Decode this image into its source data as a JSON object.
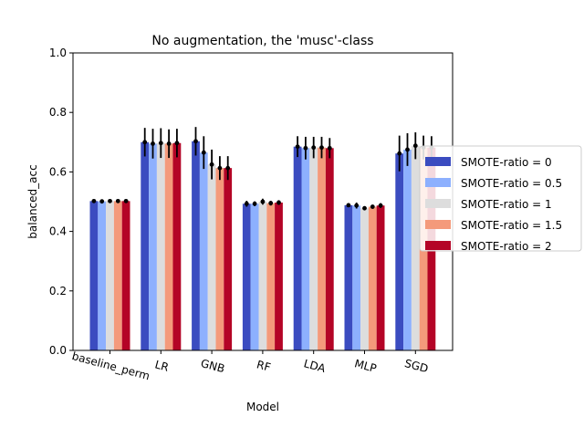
{
  "chart_data": {
    "type": "bar",
    "title": "No augmentation, the 'musc'-class",
    "xlabel": "Model",
    "ylabel": "balanced_acc",
    "ylim": [
      0,
      1.0
    ],
    "yticks": [
      "0.0",
      "0.2",
      "0.4",
      "0.6",
      "0.8",
      "1.0"
    ],
    "categories": [
      "baseline_perm",
      "LR",
      "GNB",
      "RF",
      "LDA",
      "MLP",
      "SGD"
    ],
    "legend_position": "center-right, outside plot",
    "grid": false,
    "series": [
      {
        "name": "SMOTE-ratio = 0",
        "color": "#3b4cc0",
        "values": [
          0.502,
          0.7,
          0.703,
          0.493,
          0.685,
          0.488,
          0.662
        ],
        "errors": [
          0.004,
          0.048,
          0.048,
          0.01,
          0.035,
          0.006,
          0.06
        ]
      },
      {
        "name": "SMOTE-ratio = 0.5",
        "color": "#8db0fe",
        "values": [
          0.501,
          0.695,
          0.665,
          0.493,
          0.68,
          0.487,
          0.675
        ],
        "errors": [
          0.004,
          0.05,
          0.055,
          0.008,
          0.038,
          0.01,
          0.055
        ]
      },
      {
        "name": "SMOTE-ratio = 1",
        "color": "#dddddd",
        "values": [
          0.502,
          0.697,
          0.625,
          0.5,
          0.682,
          0.478,
          0.688
        ],
        "errors": [
          0.004,
          0.05,
          0.05,
          0.01,
          0.036,
          0.006,
          0.045
        ]
      },
      {
        "name": "SMOTE-ratio = 1.5",
        "color": "#f49a7b",
        "values": [
          0.502,
          0.695,
          0.613,
          0.495,
          0.682,
          0.483,
          0.682
        ],
        "errors": [
          0.004,
          0.048,
          0.04,
          0.008,
          0.036,
          0.006,
          0.04
        ]
      },
      {
        "name": "SMOTE-ratio = 2",
        "color": "#b40426",
        "values": [
          0.502,
          0.697,
          0.613,
          0.497,
          0.68,
          0.487,
          0.682
        ],
        "errors": [
          0.004,
          0.048,
          0.04,
          0.008,
          0.034,
          0.008,
          0.038
        ]
      }
    ]
  }
}
